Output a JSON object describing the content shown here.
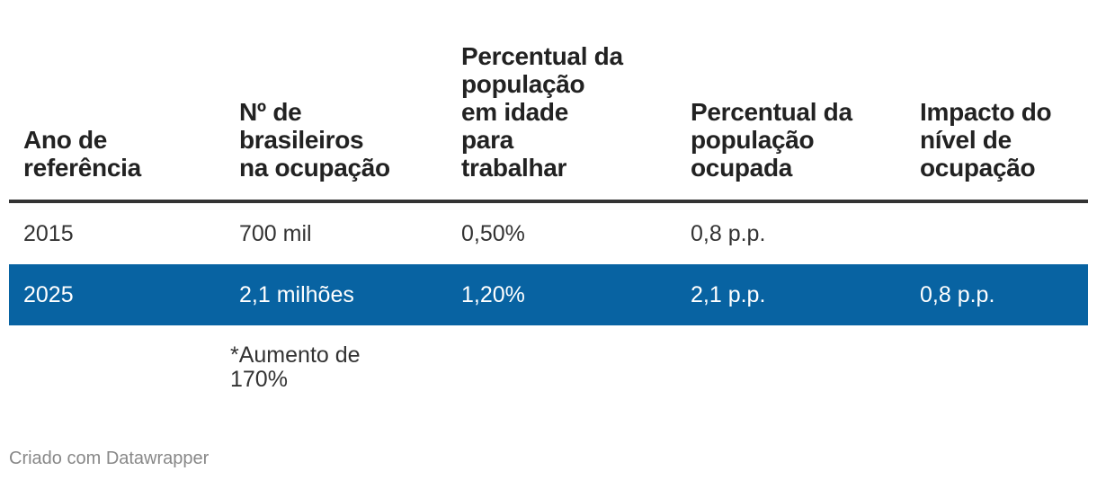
{
  "chart_data": {
    "type": "table",
    "columns": [
      "Ano de referência",
      "Nº de brasileiros na ocupação",
      "Percentual da população em idade para trabalhar",
      "Percentual da população ocupada",
      "Impacto do nível de ocupação"
    ],
    "header_lines": [
      [
        "Ano de",
        "referência"
      ],
      [
        "Nº de",
        "brasileiros",
        "na ocupação"
      ],
      [
        "Percentual da",
        "população",
        "em idade",
        "para",
        "trabalhar"
      ],
      [
        "Percentual da",
        "população",
        "ocupada"
      ],
      [
        "Impacto do",
        "nível de",
        "ocupação"
      ]
    ],
    "rows": [
      [
        "2015",
        "700 mil",
        "0,50%",
        "0,8 p.p.",
        ""
      ],
      [
        "2025",
        "2,1 milhões",
        "1,20%",
        "2,1 p.p.",
        "0,8 p.p."
      ]
    ],
    "highlight_row": 1,
    "highlight_color": "#0863a2",
    "note_lines": [
      "*Aumento de",
      "170%"
    ]
  },
  "credit": "Criado com Datawrapper"
}
